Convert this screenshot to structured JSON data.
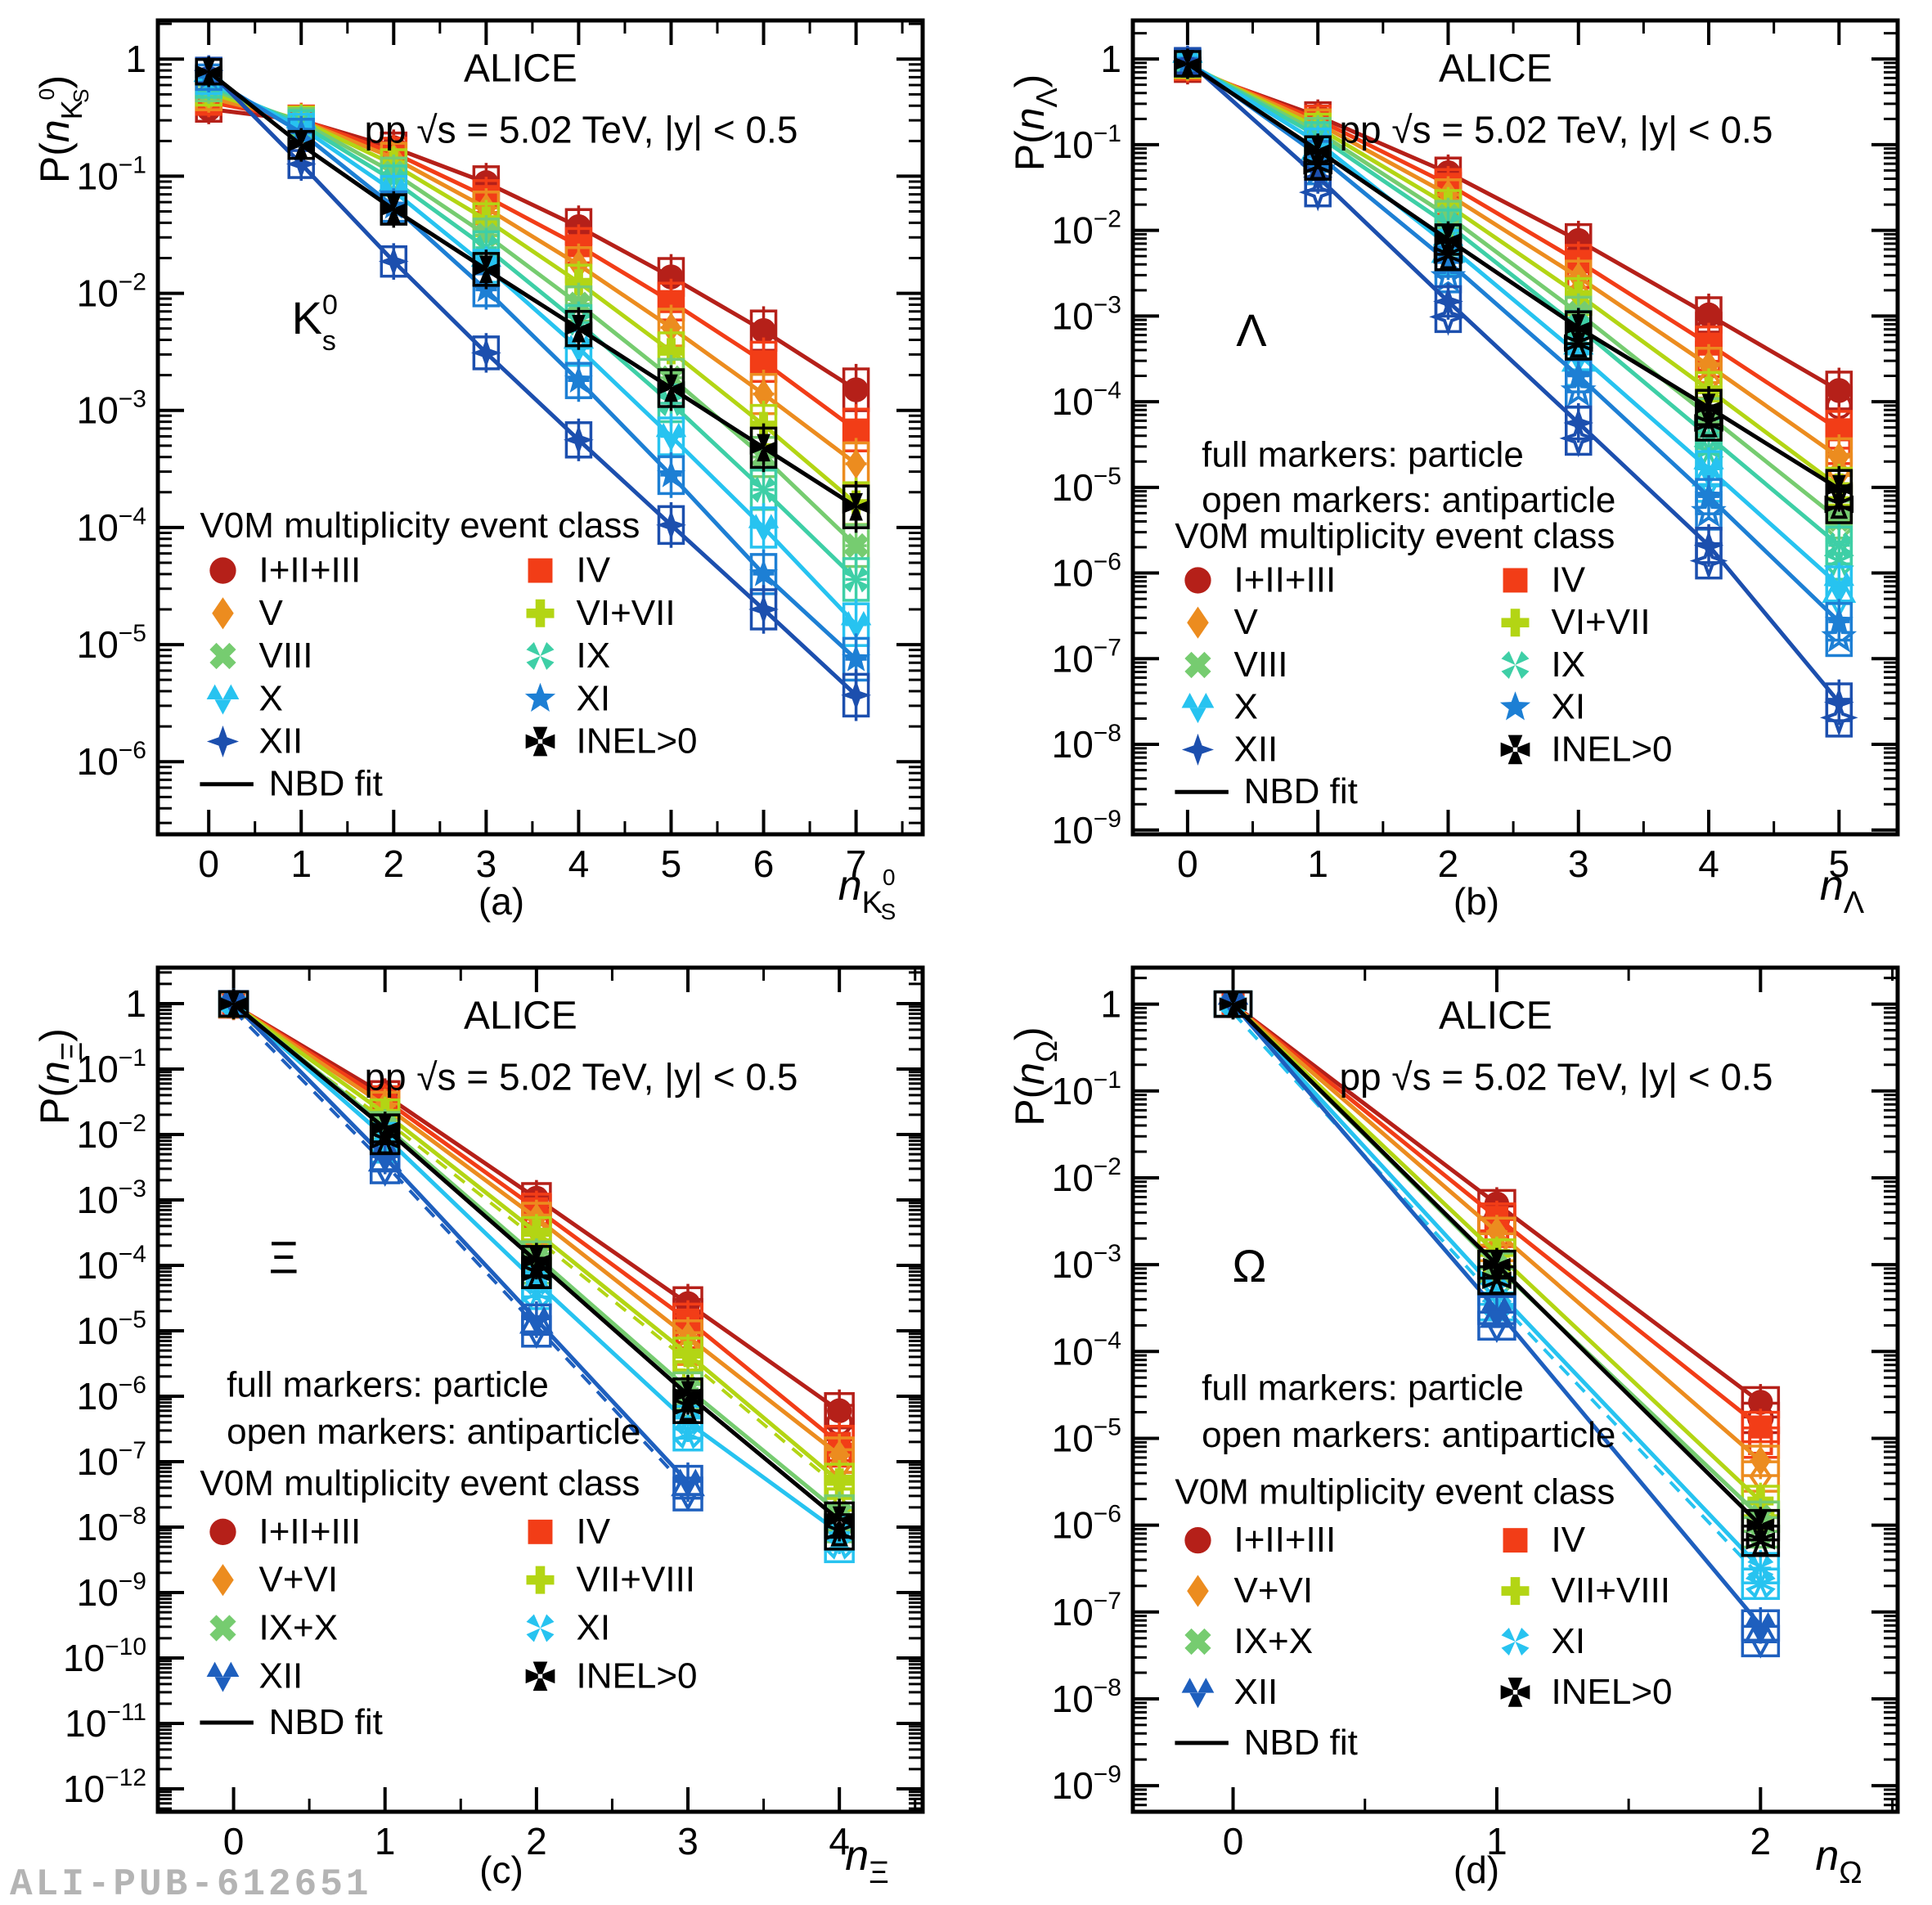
{
  "watermark": "ALI-PUB-612651",
  "annotation_line1": "ALICE",
  "annotation_line2": "pp   √s = 5.02 TeV, |y| < 0.5",
  "legend_title": "V0M multiplicity event class",
  "nbd_label": "NBD fit",
  "notes": [
    "full markers: particle",
    "open markers: antiparticle"
  ],
  "colors": {
    "class1": "#b52019",
    "class2": "#f23d17",
    "class3": "#ec8c1f",
    "class4": "#b3d514",
    "class5": "#76cc70",
    "class6": "#3ecfa6",
    "class7": "#27c3f0",
    "class8": "#1d7fd4",
    "class9": "#1c4fae",
    "class9cd": "#1e5fbe",
    "inel": "#000000",
    "watermark_gray": "#b4b4b4"
  },
  "chart_data": [
    {
      "id": "a",
      "type": "line",
      "caption": "(a)",
      "particle": {
        "text": "K",
        "sup": "0",
        "sub": "s"
      },
      "x_axis_label": {
        "text": "n",
        "sub": "K",
        "sub_sup": "0",
        "sub_sub": "S"
      },
      "y_axis_label": {
        "prefix": "P(",
        "text": "n",
        "sub": "K",
        "sub_sup": "0",
        "sub_sub": "S",
        "suffix": ")"
      },
      "has_antiparticle_notes": false,
      "x": [
        0,
        1,
        2,
        3,
        4,
        5,
        6,
        7
      ],
      "xlim": [
        -0.55,
        7.72
      ],
      "ylim_exp": [
        0.33,
        -6.62
      ],
      "y_tick_exps": [
        0,
        -1,
        -2,
        -3,
        -4,
        -5,
        -6
      ],
      "series": [
        {
          "name": "I+II+III",
          "marker": "circle",
          "color": "#b52019",
          "values": [
            0.375,
            0.3,
            0.175,
            0.088,
            0.037,
            0.0138,
            0.0048,
            0.0015
          ]
        },
        {
          "name": "IV",
          "marker": "square",
          "color": "#f23d17",
          "values": [
            0.43,
            0.305,
            0.158,
            0.067,
            0.0255,
            0.0085,
            0.0026,
            0.00068
          ]
        },
        {
          "name": "V",
          "marker": "diamond",
          "color": "#ec8c1f",
          "values": [
            0.47,
            0.3,
            0.143,
            0.0535,
            0.0175,
            0.0051,
            0.00138,
            0.00035
          ]
        },
        {
          "name": "VI+VII",
          "marker": "plus",
          "color": "#b3d514",
          "values": [
            0.515,
            0.298,
            0.126,
            0.0425,
            0.0124,
            0.0032,
            0.00075,
            0.00016
          ]
        },
        {
          "name": "VIII",
          "marker": "xcross",
          "color": "#76cc70",
          "values": [
            0.56,
            0.29,
            0.107,
            0.0315,
            0.0081,
            0.0019,
            0.0004,
            7e-05
          ]
        },
        {
          "name": "IX",
          "marker": "xstar",
          "color": "#3ecfa6",
          "values": [
            0.6,
            0.278,
            0.0915,
            0.0245,
            0.0056,
            0.00115,
            0.00021,
            3.6e-05
          ]
        },
        {
          "name": "X",
          "marker": "tritri",
          "color": "#27c3f0",
          "values": [
            0.645,
            0.26,
            0.0745,
            0.017,
            0.0034,
            0.0006,
            0.0001,
            1.48e-05
          ]
        },
        {
          "name": "XI",
          "marker": "star5",
          "color": "#1d7fd4",
          "values": [
            0.7,
            0.235,
            0.055,
            0.0107,
            0.0018,
            0.00028,
            4e-05,
            7.5e-06
          ]
        },
        {
          "name": "XII",
          "marker": "star4",
          "color": "#1c4fae",
          "values": [
            0.8,
            0.127,
            0.0187,
            0.0031,
            0.00056,
            0.000105,
            2e-05,
            3.7e-06
          ]
        },
        {
          "name": "INEL>0",
          "marker": "pattee",
          "color": "#000000",
          "values": [
            0.78,
            0.185,
            0.052,
            0.016,
            0.005,
            0.00155,
            0.00048,
            0.00015
          ]
        }
      ],
      "legend_rows": [
        [
          "I+II+III",
          "IV"
        ],
        [
          "V",
          "VI+VII"
        ],
        [
          "VIII",
          "IX"
        ],
        [
          "X",
          "XI"
        ],
        [
          "XII",
          "INEL>0"
        ]
      ]
    },
    {
      "id": "b",
      "type": "line",
      "caption": "(b)",
      "particle": {
        "text": "Λ"
      },
      "x_axis_label": {
        "text": "n",
        "sub": "Λ"
      },
      "y_axis_label": {
        "prefix": "P(",
        "text": "n",
        "sub": "Λ",
        "suffix": ")"
      },
      "has_antiparticle_notes": true,
      "x": [
        0,
        1,
        2,
        3,
        4,
        5
      ],
      "xlim": [
        -0.42,
        5.45
      ],
      "ylim_exp": [
        0.45,
        -9.05
      ],
      "y_tick_exps": [
        0,
        -1,
        -2,
        -3,
        -4,
        -5,
        -6,
        -7,
        -8,
        -9
      ],
      "series": [
        {
          "name": "I+II+III",
          "marker": "circle",
          "color": "#b52019",
          "values": [
            0.76,
            0.215,
            0.047,
            0.0076,
            0.00103,
            0.000135
          ]
        },
        {
          "name": "IV",
          "marker": "square",
          "color": "#f23d17",
          "values": [
            0.8,
            0.196,
            0.0345,
            0.00435,
            0.00047,
            4.7e-05
          ]
        },
        {
          "name": "V",
          "marker": "diamond",
          "color": "#ec8c1f",
          "values": [
            0.83,
            0.177,
            0.0262,
            0.00285,
            0.000265,
            2.25e-05
          ]
        },
        {
          "name": "VI+VII",
          "marker": "plus",
          "color": "#b3d514",
          "values": [
            0.855,
            0.158,
            0.0196,
            0.00178,
            0.000138,
            1.02e-05
          ]
        },
        {
          "name": "VIII",
          "marker": "xcross",
          "color": "#76cc70",
          "values": [
            0.875,
            0.141,
            0.0147,
            0.00108,
            6.85e-05,
            4.2e-06
          ]
        },
        {
          "name": "IX",
          "marker": "xstar",
          "color": "#3ecfa6",
          "values": [
            0.895,
            0.126,
            0.0116,
            0.00074,
            3.95e-05,
            2.1e-06
          ]
        },
        {
          "name": "X",
          "marker": "tritri",
          "color": "#27c3f0",
          "values": [
            0.912,
            0.106,
            0.0067,
            0.00036,
            1.65e-05,
            7.2e-07
          ]
        },
        {
          "name": "XI",
          "marker": "star5",
          "color": "#1d7fd4",
          "values": [
            0.928,
            0.076,
            0.0043,
            0.0002,
            7.8e-06,
            2.7e-07
          ]
        },
        {
          "name": "XII",
          "marker": "star4",
          "color": "#1c4fae",
          "values": [
            0.955,
            0.042,
            0.00148,
            5.65e-05,
            2.1e-06,
            3.1e-08
          ]
        },
        {
          "name": "INEL>0",
          "marker": "pattee",
          "color": "#000000",
          "values": [
            0.88,
            0.086,
            0.0078,
            0.00073,
            8.55e-05,
            9.6e-06
          ]
        }
      ],
      "legend_rows": [
        [
          "I+II+III",
          "IV"
        ],
        [
          "V",
          "VI+VII"
        ],
        [
          "VIII",
          "IX"
        ],
        [
          "X",
          "XI"
        ],
        [
          "XII",
          "INEL>0"
        ]
      ]
    },
    {
      "id": "c",
      "type": "line",
      "caption": "(c)",
      "particle": {
        "text": "Ξ"
      },
      "x_axis_label": {
        "text": "n",
        "sub": "Ξ"
      },
      "y_axis_label": {
        "prefix": "P(",
        "text": "n",
        "sub": "Ξ",
        "suffix": ")"
      },
      "has_antiparticle_notes": true,
      "x": [
        0,
        1,
        2,
        3,
        4
      ],
      "xlim": [
        -0.5,
        4.55
      ],
      "ylim_exp": [
        0.55,
        -12.35
      ],
      "y_tick_exps": [
        0,
        -1,
        -2,
        -3,
        -4,
        -5,
        -6,
        -7,
        -8,
        -9,
        -10,
        -11,
        -12
      ],
      "series": [
        {
          "name": "I+II+III",
          "marker": "circle",
          "color": "#b52019",
          "values": [
            0.955,
            0.04,
            0.00106,
            2.6e-05,
            6e-07
          ]
        },
        {
          "name": "IV",
          "marker": "square",
          "color": "#f23d17",
          "values": [
            0.964,
            0.0335,
            0.00073,
            1.46e-05,
            1.9e-07
          ]
        },
        {
          "name": "V+VI",
          "marker": "diamond",
          "color": "#ec8c1f",
          "values": [
            0.972,
            0.0275,
            0.00053,
            8.1e-06,
            1.26e-07
          ]
        },
        {
          "name": "VII+VIII",
          "marker": "plus",
          "color": "#b3d514",
          "values": [
            0.979,
            0.021,
            0.00032,
            4.4e-06,
            5e-08
          ],
          "dashed_companion": true
        },
        {
          "name": "IX+X",
          "marker": "xcross",
          "color": "#76cc70",
          "values": [
            0.9865,
            0.0135,
            0.000136,
            1.3e-06,
            1.65e-08
          ]
        },
        {
          "name": "XI",
          "marker": "xstar",
          "color": "#27c3f0",
          "values": [
            0.9905,
            0.0092,
            5.55e-05,
            4e-07,
            8.2e-09
          ]
        },
        {
          "name": "XII",
          "marker": "tritri",
          "color": "#1e5fbe",
          "values": [
            0.9955,
            0.00445,
            1.48e-05,
            4.85e-08,
            null
          ],
          "dashed_companion": true
        },
        {
          "name": "INEL>0",
          "marker": "pattee",
          "color": "#000000",
          "values": [
            0.9875,
            0.0124,
            0.000116,
            1.05e-06,
            1.28e-08
          ]
        }
      ],
      "legend_rows": [
        [
          "I+II+III",
          "IV"
        ],
        [
          "V+VI",
          "VII+VIII"
        ],
        [
          "IX+X",
          "XI"
        ],
        [
          "XII",
          "INEL>0"
        ]
      ]
    },
    {
      "id": "d",
      "type": "line",
      "caption": "(d)",
      "particle": {
        "text": "Ω"
      },
      "x_axis_label": {
        "text": "n",
        "sub": "Ω"
      },
      "y_axis_label": {
        "prefix": "P(",
        "text": "n",
        "sub": "Ω",
        "suffix": ")"
      },
      "has_antiparticle_notes": true,
      "x": [
        0,
        1,
        2
      ],
      "xlim": [
        -0.38,
        2.52
      ],
      "ylim_exp": [
        0.42,
        -9.3
      ],
      "y_tick_exps": [
        0,
        -1,
        -2,
        -3,
        -4,
        -5,
        -6,
        -7,
        -8,
        -9
      ],
      "series": [
        {
          "name": "I+II+III",
          "marker": "circle",
          "color": "#b52019",
          "values": [
            0.995,
            0.005,
            2.6e-05
          ]
        },
        {
          "name": "IV",
          "marker": "square",
          "color": "#f23d17",
          "values": [
            0.9965,
            0.0035,
            1.35e-05
          ]
        },
        {
          "name": "V+VI",
          "marker": "diamond",
          "color": "#ec8c1f",
          "values": [
            0.9975,
            0.0024,
            5.5e-06
          ]
        },
        {
          "name": "VII+VIII",
          "marker": "plus",
          "color": "#b3d514",
          "values": [
            0.9985,
            0.00135,
            1.9e-06
          ]
        },
        {
          "name": "IX+X",
          "marker": "xcross",
          "color": "#76cc70",
          "values": [
            0.999,
            0.00095,
            1.25e-06
          ]
        },
        {
          "name": "XI",
          "marker": "xstar",
          "color": "#27c3f0",
          "values": [
            0.9993,
            0.0005,
            3.2e-07
          ],
          "dashed_companion": true
        },
        {
          "name": "XII",
          "marker": "tritri",
          "color": "#1e5fbe",
          "values": [
            0.9995,
            0.0003,
            7e-08
          ]
        },
        {
          "name": "INEL>0",
          "marker": "pattee",
          "color": "#000000",
          "values": [
            0.999,
            0.001,
            1e-06
          ]
        }
      ],
      "legend_rows": [
        [
          "I+II+III",
          "IV"
        ],
        [
          "V+VI",
          "VII+VIII"
        ],
        [
          "IX+X",
          "XI"
        ],
        [
          "XII",
          "INEL>0"
        ]
      ]
    }
  ]
}
